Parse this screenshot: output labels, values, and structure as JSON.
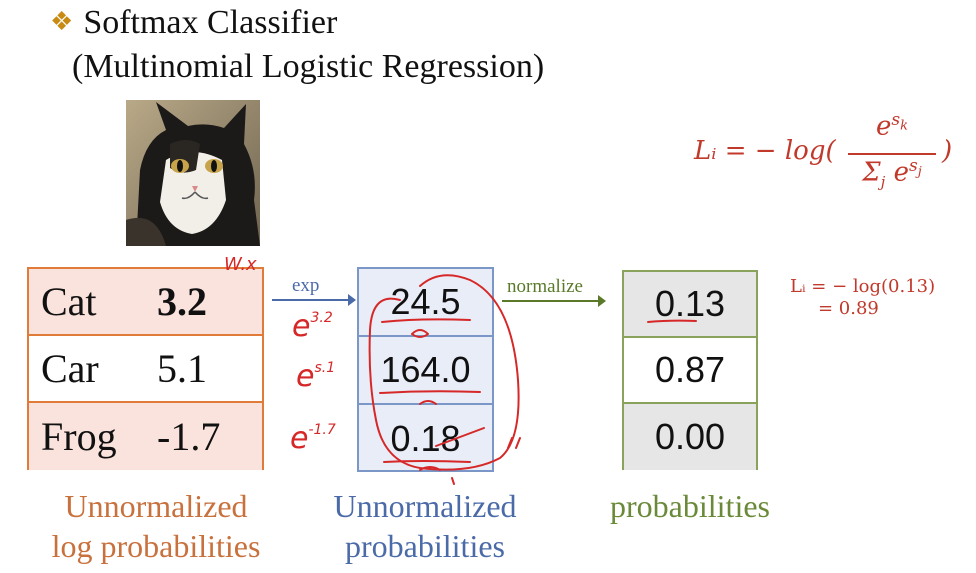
{
  "header": {
    "bullet": "❖",
    "title": "Softmax Classifier",
    "subtitle": "(Multinomial Logistic Regression)"
  },
  "formula": {
    "lhs": "Lᵢ = − log(",
    "numerator": "e^sₖ",
    "denominator": "Σⱼ e^sⱼ",
    "rparen": ")"
  },
  "scores_table": {
    "rows": [
      {
        "label": "Cat",
        "value": "3.2"
      },
      {
        "label": "Car",
        "value": "5.1"
      },
      {
        "label": "Frog",
        "value": "-1.7"
      }
    ]
  },
  "exp_table": {
    "rows": [
      "24.5",
      "164.0",
      "0.18"
    ]
  },
  "prob_table": {
    "rows": [
      "0.13",
      "0.87",
      "0.00"
    ]
  },
  "arrows": {
    "exp": "exp",
    "normalize": "normalize"
  },
  "loss_result": {
    "line1": "Lᵢ = − log(0.13)",
    "line2": "= 0.89"
  },
  "captions": {
    "scores_line1": "Unnormalized",
    "scores_line2": "log probabilities",
    "exp_line1": "Unnormalized",
    "exp_line2": "probabilities",
    "prob_line1": "probabilities"
  },
  "handwriting": {
    "wx": "W.x",
    "e32": "e^3.2",
    "e51": "e^5.1",
    "e17": "e^-1.7"
  },
  "colors": {
    "scores_border": "#e07b3a",
    "exp_border": "#7a97c7",
    "prob_border": "#8aa35c",
    "ink": "#d62828"
  }
}
